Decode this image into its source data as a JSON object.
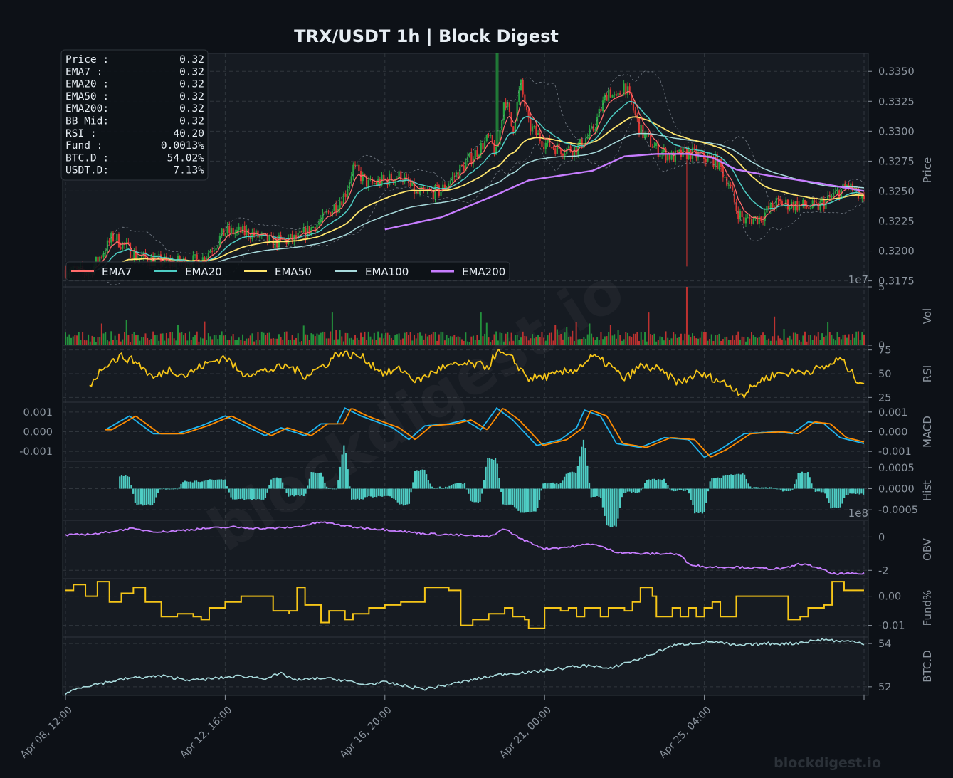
{
  "chart_data": {
    "type": "line",
    "title": "TRX/USDT  1h  |  Block Digest",
    "watermark": "blockdigest.io",
    "footer_brand": "blockdigest.io",
    "colors": {
      "background": "#0d1117",
      "panel": "#161b22",
      "grid": "#30363d",
      "ema7": "#ff6b6b",
      "ema20": "#4ecdc4",
      "ema50": "#ffe66d",
      "ema100": "#a8dadc",
      "ema200": "#c77dff",
      "rsi": "#f5c518",
      "macd": "#1fb5f0",
      "signal": "#ff8c00",
      "hist": "#4ecdc4",
      "obv": "#c77dff",
      "fund": "#f5c518",
      "btcd": "#a8dadc",
      "up": "#26a641",
      "down": "#da3633"
    },
    "x_ticks": [
      "Apr 08, 12:00",
      "Apr 12, 16:00",
      "Apr 16, 20:00",
      "Apr 21, 00:00",
      "Apr 25, 04:00"
    ],
    "info_box": [
      {
        "label": "Price :",
        "value": "0.32"
      },
      {
        "label": "EMA7  :",
        "value": "0.32"
      },
      {
        "label": "EMA20 :",
        "value": "0.32"
      },
      {
        "label": "EMA50 :",
        "value": "0.32"
      },
      {
        "label": "EMA200:",
        "value": "0.32"
      },
      {
        "label": "BB Mid:",
        "value": "0.32"
      },
      {
        "label": "RSI   :",
        "value": "40.20"
      },
      {
        "label": "Fund  :",
        "value": "0.0013%"
      },
      {
        "label": "BTC.D :",
        "value": "54.02%"
      },
      {
        "label": "USDT.D:",
        "value": "7.13%"
      }
    ],
    "legend": [
      "EMA7",
      "EMA20",
      "EMA50",
      "EMA100",
      "EMA200"
    ],
    "panels": {
      "price": {
        "ylabel": "Price",
        "ylim": [
          0.317,
          0.3365
        ],
        "ticks": [
          "0.3175",
          "0.3200",
          "0.3225",
          "0.3250",
          "0.3275",
          "0.3300",
          "0.3325",
          "0.3350"
        ]
      },
      "vol": {
        "ylabel": "Vol",
        "ylim": [
          0,
          5
        ],
        "ticks": [
          "0",
          "5"
        ],
        "offset": "1e7"
      },
      "rsi": {
        "ylabel": "RSI",
        "ylim": [
          20,
          80
        ],
        "ticks": [
          "25",
          "50",
          "75"
        ]
      },
      "macd": {
        "ylabel": "MACD",
        "ylim": [
          -0.0015,
          0.0015
        ],
        "ticks": [
          "-0.001",
          "0.000",
          "0.001"
        ],
        "left_ticks": [
          "-0.001",
          "0.000",
          "0.001"
        ]
      },
      "hist": {
        "ylabel": "Hist",
        "ylim": [
          -0.00075,
          0.00065
        ],
        "ticks": [
          "-0.0005",
          "0.0000",
          "0.0005"
        ]
      },
      "obv": {
        "ylabel": "OBV",
        "ylim": [
          -2.5,
          1.0
        ],
        "ticks": [
          "-2",
          "0"
        ],
        "offset": "1e8"
      },
      "fund": {
        "ylabel": "Fund%",
        "ylim": [
          -0.014,
          0.006
        ],
        "ticks": [
          "-0.01",
          "0.00"
        ]
      },
      "btcd": {
        "ylabel": "BTC.D",
        "ylim": [
          51.6,
          54.3
        ],
        "ticks": [
          "52",
          "54"
        ]
      }
    },
    "series": {
      "price_anchors": [
        [
          0,
          0.3184
        ],
        [
          0.03,
          0.3182
        ],
        [
          0.06,
          0.3212
        ],
        [
          0.09,
          0.3195
        ],
        [
          0.13,
          0.319
        ],
        [
          0.17,
          0.3192
        ],
        [
          0.2,
          0.3216
        ],
        [
          0.23,
          0.3215
        ],
        [
          0.26,
          0.3207
        ],
        [
          0.29,
          0.321
        ],
        [
          0.32,
          0.3225
        ],
        [
          0.35,
          0.3247
        ],
        [
          0.36,
          0.327
        ],
        [
          0.38,
          0.3255
        ],
        [
          0.42,
          0.3263
        ],
        [
          0.44,
          0.3247
        ],
        [
          0.47,
          0.325
        ],
        [
          0.5,
          0.3272
        ],
        [
          0.53,
          0.3294
        ],
        [
          0.54,
          0.328
        ],
        [
          0.55,
          0.333
        ],
        [
          0.56,
          0.33
        ],
        [
          0.57,
          0.334
        ],
        [
          0.58,
          0.3305
        ],
        [
          0.6,
          0.329
        ],
        [
          0.62,
          0.3285
        ],
        [
          0.64,
          0.3285
        ],
        [
          0.66,
          0.33
        ],
        [
          0.68,
          0.3335
        ],
        [
          0.69,
          0.3325
        ],
        [
          0.7,
          0.334
        ],
        [
          0.72,
          0.33
        ],
        [
          0.74,
          0.3285
        ],
        [
          0.76,
          0.3278
        ],
        [
          0.78,
          0.3282
        ],
        [
          0.8,
          0.3278
        ],
        [
          0.815,
          0.3275
        ],
        [
          0.83,
          0.3258
        ],
        [
          0.84,
          0.3235
        ],
        [
          0.85,
          0.3225
        ],
        [
          0.87,
          0.3228
        ],
        [
          0.89,
          0.324
        ],
        [
          0.92,
          0.3238
        ],
        [
          0.94,
          0.3236
        ],
        [
          0.96,
          0.3245
        ],
        [
          0.98,
          0.3255
        ],
        [
          1.0,
          0.324
        ]
      ],
      "ema200_anchors": [
        [
          0.4,
          0.3218
        ],
        [
          0.47,
          0.3228
        ],
        [
          0.54,
          0.3247
        ],
        [
          0.58,
          0.3259
        ],
        [
          0.62,
          0.3263
        ],
        [
          0.66,
          0.3267
        ],
        [
          0.7,
          0.3279
        ],
        [
          0.74,
          0.3281
        ],
        [
          0.78,
          0.3281
        ],
        [
          0.81,
          0.3278
        ],
        [
          0.84,
          0.3268
        ],
        [
          0.88,
          0.3263
        ],
        [
          0.94,
          0.3257
        ],
        [
          1.0,
          0.325
        ]
      ],
      "ema_offsets_end": {
        "ema7": 0.322,
        "ema20": 0.3225,
        "ema50": 0.3232,
        "ema100": 0.324
      },
      "rsi_anchors": [
        [
          0.03,
          38
        ],
        [
          0.05,
          60
        ],
        [
          0.07,
          68
        ],
        [
          0.09,
          62
        ],
        [
          0.11,
          45
        ],
        [
          0.13,
          55
        ],
        [
          0.15,
          48
        ],
        [
          0.17,
          58
        ],
        [
          0.2,
          68
        ],
        [
          0.22,
          50
        ],
        [
          0.25,
          53
        ],
        [
          0.28,
          58
        ],
        [
          0.3,
          48
        ],
        [
          0.33,
          62
        ],
        [
          0.34,
          72
        ],
        [
          0.37,
          68
        ],
        [
          0.4,
          50
        ],
        [
          0.42,
          55
        ],
        [
          0.44,
          42
        ],
        [
          0.47,
          56
        ],
        [
          0.5,
          60
        ],
        [
          0.53,
          58
        ],
        [
          0.54,
          73
        ],
        [
          0.56,
          65
        ],
        [
          0.58,
          45
        ],
        [
          0.61,
          48
        ],
        [
          0.64,
          55
        ],
        [
          0.66,
          68
        ],
        [
          0.68,
          60
        ],
        [
          0.7,
          44
        ],
        [
          0.72,
          58
        ],
        [
          0.74,
          55
        ],
        [
          0.77,
          40
        ],
        [
          0.79,
          50
        ],
        [
          0.81,
          46
        ],
        [
          0.83,
          38
        ],
        [
          0.85,
          28
        ],
        [
          0.87,
          43
        ],
        [
          0.89,
          50
        ],
        [
          0.92,
          52
        ],
        [
          0.95,
          56
        ],
        [
          0.97,
          66
        ],
        [
          0.99,
          45
        ],
        [
          1.0,
          40
        ]
      ],
      "macd_anchors": [
        [
          0.05,
          0.0001
        ],
        [
          0.08,
          0.0008
        ],
        [
          0.11,
          -0.0001
        ],
        [
          0.14,
          -0.0001
        ],
        [
          0.17,
          0.0003
        ],
        [
          0.2,
          0.0008
        ],
        [
          0.22,
          0.0004
        ],
        [
          0.25,
          -0.0002
        ],
        [
          0.27,
          0.0002
        ],
        [
          0.3,
          -0.0002
        ],
        [
          0.32,
          0.0004
        ],
        [
          0.34,
          0.0004
        ],
        [
          0.35,
          0.0012
        ],
        [
          0.37,
          0.0008
        ],
        [
          0.41,
          0.0002
        ],
        [
          0.43,
          -0.0004
        ],
        [
          0.45,
          0.0003
        ],
        [
          0.48,
          0.0004
        ],
        [
          0.5,
          0.0006
        ],
        [
          0.52,
          0.0001
        ],
        [
          0.54,
          0.0012
        ],
        [
          0.56,
          0.0006
        ],
        [
          0.59,
          -0.0007
        ],
        [
          0.62,
          -0.0004
        ],
        [
          0.64,
          0.0002
        ],
        [
          0.65,
          0.0011
        ],
        [
          0.67,
          0.0008
        ],
        [
          0.69,
          -0.0006
        ],
        [
          0.72,
          -0.0008
        ],
        [
          0.75,
          -0.0003
        ],
        [
          0.78,
          -0.0004
        ],
        [
          0.8,
          -0.0013
        ],
        [
          0.82,
          -0.0009
        ],
        [
          0.85,
          -0.0001
        ],
        [
          0.89,
          0.0
        ],
        [
          0.91,
          -0.0001
        ],
        [
          0.93,
          0.0005
        ],
        [
          0.95,
          0.0004
        ],
        [
          0.97,
          -0.0003
        ],
        [
          1.0,
          -0.0006
        ]
      ],
      "obv_anchors": [
        [
          0,
          0.1
        ],
        [
          0.04,
          0.2
        ],
        [
          0.08,
          0.5
        ],
        [
          0.12,
          0.3
        ],
        [
          0.17,
          0.5
        ],
        [
          0.21,
          0.6
        ],
        [
          0.25,
          0.5
        ],
        [
          0.29,
          0.6
        ],
        [
          0.32,
          0.9
        ],
        [
          0.36,
          0.6
        ],
        [
          0.41,
          0.4
        ],
        [
          0.45,
          0.2
        ],
        [
          0.5,
          0.1
        ],
        [
          0.53,
          0.0
        ],
        [
          0.55,
          0.5
        ],
        [
          0.57,
          -0.1
        ],
        [
          0.6,
          -0.7
        ],
        [
          0.63,
          -0.6
        ],
        [
          0.66,
          -0.4
        ],
        [
          0.69,
          -0.9
        ],
        [
          0.72,
          -1.0
        ],
        [
          0.76,
          -1.0
        ],
        [
          0.77,
          -1.1
        ],
        [
          0.78,
          -1.6
        ],
        [
          0.8,
          -1.8
        ],
        [
          0.84,
          -1.8
        ],
        [
          0.88,
          -1.9
        ],
        [
          0.9,
          -1.9
        ],
        [
          0.92,
          -1.6
        ],
        [
          0.94,
          -1.8
        ],
        [
          0.96,
          -2.2
        ],
        [
          1.0,
          -2.2
        ]
      ],
      "fund_steps": [
        [
          0,
          0.002
        ],
        [
          0.01,
          0.004
        ],
        [
          0.025,
          0.0
        ],
        [
          0.04,
          0.005
        ],
        [
          0.055,
          -0.002
        ],
        [
          0.07,
          0.001
        ],
        [
          0.085,
          0.003
        ],
        [
          0.1,
          -0.002
        ],
        [
          0.12,
          -0.007
        ],
        [
          0.14,
          -0.006
        ],
        [
          0.16,
          -0.007
        ],
        [
          0.17,
          -0.008
        ],
        [
          0.18,
          -0.004
        ],
        [
          0.2,
          -0.002
        ],
        [
          0.22,
          0.0
        ],
        [
          0.25,
          0.0
        ],
        [
          0.26,
          -0.005
        ],
        [
          0.28,
          -0.006
        ],
        [
          0.28,
          -0.005
        ],
        [
          0.29,
          0.003
        ],
        [
          0.3,
          -0.003
        ],
        [
          0.32,
          -0.009
        ],
        [
          0.33,
          -0.005
        ],
        [
          0.35,
          -0.008
        ],
        [
          0.36,
          -0.006
        ],
        [
          0.38,
          -0.004
        ],
        [
          0.4,
          -0.003
        ],
        [
          0.42,
          -0.002
        ],
        [
          0.45,
          0.003
        ],
        [
          0.46,
          0.003
        ],
        [
          0.47,
          0.003
        ],
        [
          0.48,
          0.002
        ],
        [
          0.495,
          -0.01
        ],
        [
          0.51,
          -0.008
        ],
        [
          0.53,
          -0.006
        ],
        [
          0.55,
          -0.004
        ],
        [
          0.56,
          -0.007
        ],
        [
          0.575,
          -0.008
        ],
        [
          0.58,
          -0.011
        ],
        [
          0.6,
          -0.004
        ],
        [
          0.62,
          -0.005
        ],
        [
          0.63,
          -0.004
        ],
        [
          0.64,
          -0.007
        ],
        [
          0.65,
          -0.004
        ],
        [
          0.67,
          -0.007
        ],
        [
          0.68,
          -0.004
        ],
        [
          0.7,
          -0.005
        ],
        [
          0.71,
          -0.002
        ],
        [
          0.72,
          0.003
        ],
        [
          0.735,
          0.0
        ],
        [
          0.74,
          -0.007
        ],
        [
          0.76,
          -0.004
        ],
        [
          0.77,
          -0.007
        ],
        [
          0.78,
          -0.004
        ],
        [
          0.79,
          -0.007
        ],
        [
          0.8,
          -0.004
        ],
        [
          0.81,
          -0.002
        ],
        [
          0.82,
          -0.007
        ],
        [
          0.84,
          -0.006
        ],
        [
          0.84,
          0.0
        ],
        [
          0.865,
          0.0
        ],
        [
          0.88,
          0.0
        ],
        [
          0.9,
          0.0
        ],
        [
          0.905,
          -0.008
        ],
        [
          0.92,
          -0.007
        ],
        [
          0.93,
          -0.004
        ],
        [
          0.95,
          -0.003
        ],
        [
          0.96,
          0.005
        ],
        [
          0.975,
          0.002
        ],
        [
          1.0,
          0.002
        ]
      ],
      "btcd_anchors": [
        [
          0,
          51.7
        ],
        [
          0.02,
          52.0
        ],
        [
          0.05,
          52.2
        ],
        [
          0.08,
          52.4
        ],
        [
          0.12,
          52.5
        ],
        [
          0.16,
          52.3
        ],
        [
          0.19,
          52.4
        ],
        [
          0.22,
          52.5
        ],
        [
          0.25,
          52.4
        ],
        [
          0.27,
          52.6
        ],
        [
          0.29,
          52.3
        ],
        [
          0.32,
          52.4
        ],
        [
          0.35,
          52.3
        ],
        [
          0.37,
          52.1
        ],
        [
          0.4,
          52.2
        ],
        [
          0.43,
          52.0
        ],
        [
          0.45,
          51.9
        ],
        [
          0.48,
          52.1
        ],
        [
          0.52,
          52.4
        ],
        [
          0.55,
          52.6
        ],
        [
          0.59,
          52.7
        ],
        [
          0.63,
          52.9
        ],
        [
          0.66,
          53.0
        ],
        [
          0.68,
          52.8
        ],
        [
          0.7,
          53.1
        ],
        [
          0.72,
          53.3
        ],
        [
          0.74,
          53.6
        ],
        [
          0.76,
          53.9
        ],
        [
          0.78,
          54.0
        ],
        [
          0.81,
          54.1
        ],
        [
          0.84,
          53.9
        ],
        [
          0.88,
          54.0
        ],
        [
          0.91,
          54.0
        ],
        [
          0.93,
          54.1
        ],
        [
          0.95,
          54.2
        ],
        [
          0.97,
          54.1
        ],
        [
          0.99,
          54.1
        ],
        [
          1.0,
          54.0
        ]
      ],
      "vol_spikes": [
        [
          0.335,
          2.8
        ],
        [
          0.52,
          2.8
        ],
        [
          0.64,
          2.0
        ],
        [
          0.73,
          2.8
        ],
        [
          0.778,
          5.0
        ],
        [
          0.9,
          1.4
        ]
      ],
      "candle_count": 420
    }
  }
}
